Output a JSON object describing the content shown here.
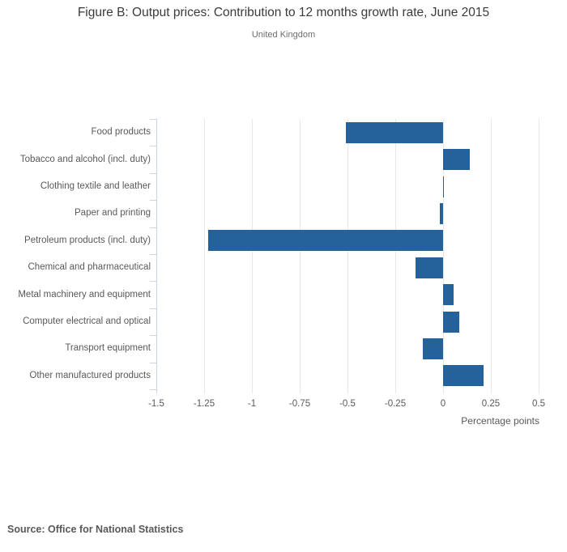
{
  "header": {
    "title": "Figure B: Output prices: Contribution to 12 months growth rate, June 2015",
    "subtitle": "United Kingdom"
  },
  "chart_data": {
    "type": "bar",
    "orientation": "horizontal",
    "title": "Figure B: Output prices: Contribution to 12 months growth rate, June 2015",
    "subtitle": "United Kingdom",
    "categories": [
      "Food products",
      "Tobacco and alcohol (incl. duty)",
      "Clothing textile and leather",
      "Paper and printing",
      "Petroleum products (incl. duty)",
      "Chemical and pharmaceutical",
      "Metal machinery and equipment",
      "Computer electrical and optical",
      "Transport equipment",
      "Other manufactured products"
    ],
    "values": [
      -0.51,
      0.14,
      0.005,
      -0.015,
      -1.23,
      -0.145,
      0.055,
      0.085,
      -0.105,
      0.21
    ],
    "xlabel": "Percentage points",
    "ylabel": "",
    "xlim": [
      -1.5,
      0.5
    ],
    "xticks": [
      -1.5,
      -1.25,
      -1,
      -0.75,
      -0.5,
      -0.25,
      0,
      0.25,
      0.5
    ],
    "xtick_labels": [
      "-1.5",
      "-1.25",
      "-1",
      "-0.75",
      "-0.5",
      "-0.25",
      "0",
      "0.25",
      "0.5"
    ],
    "grid": true,
    "legend": "none",
    "bar_color": "#25629b",
    "gridline_color": "#e8e8e8",
    "axis_line_color": "#ccd3e8",
    "label_color": "#595959"
  },
  "footer": {
    "source": "Source: Office for National Statistics"
  }
}
